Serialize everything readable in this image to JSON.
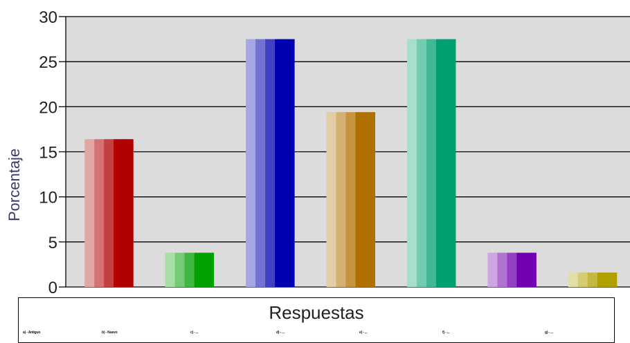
{
  "chart_data": {
    "type": "bar",
    "ylabel": "Porcentaje",
    "xlabel": "Respuestas",
    "ylim": [
      0,
      30
    ],
    "yticks": [
      0,
      5,
      10,
      15,
      20,
      25,
      30
    ],
    "grid": true,
    "categories": [
      "a) - Antiguo",
      "b) - Nuevo",
      "c) - ...",
      "d) - ...",
      "e) - ...",
      "f) - ...",
      "g) - ..."
    ],
    "values": [
      16.4,
      3.8,
      27.5,
      19.4,
      27.5,
      3.8,
      1.6
    ],
    "bar_colors": [
      "#b00000",
      "#00a000",
      "#0000b0",
      "#b07000",
      "#00a070",
      "#7000b0",
      "#b0a000"
    ],
    "legend_placement": "bottom"
  }
}
